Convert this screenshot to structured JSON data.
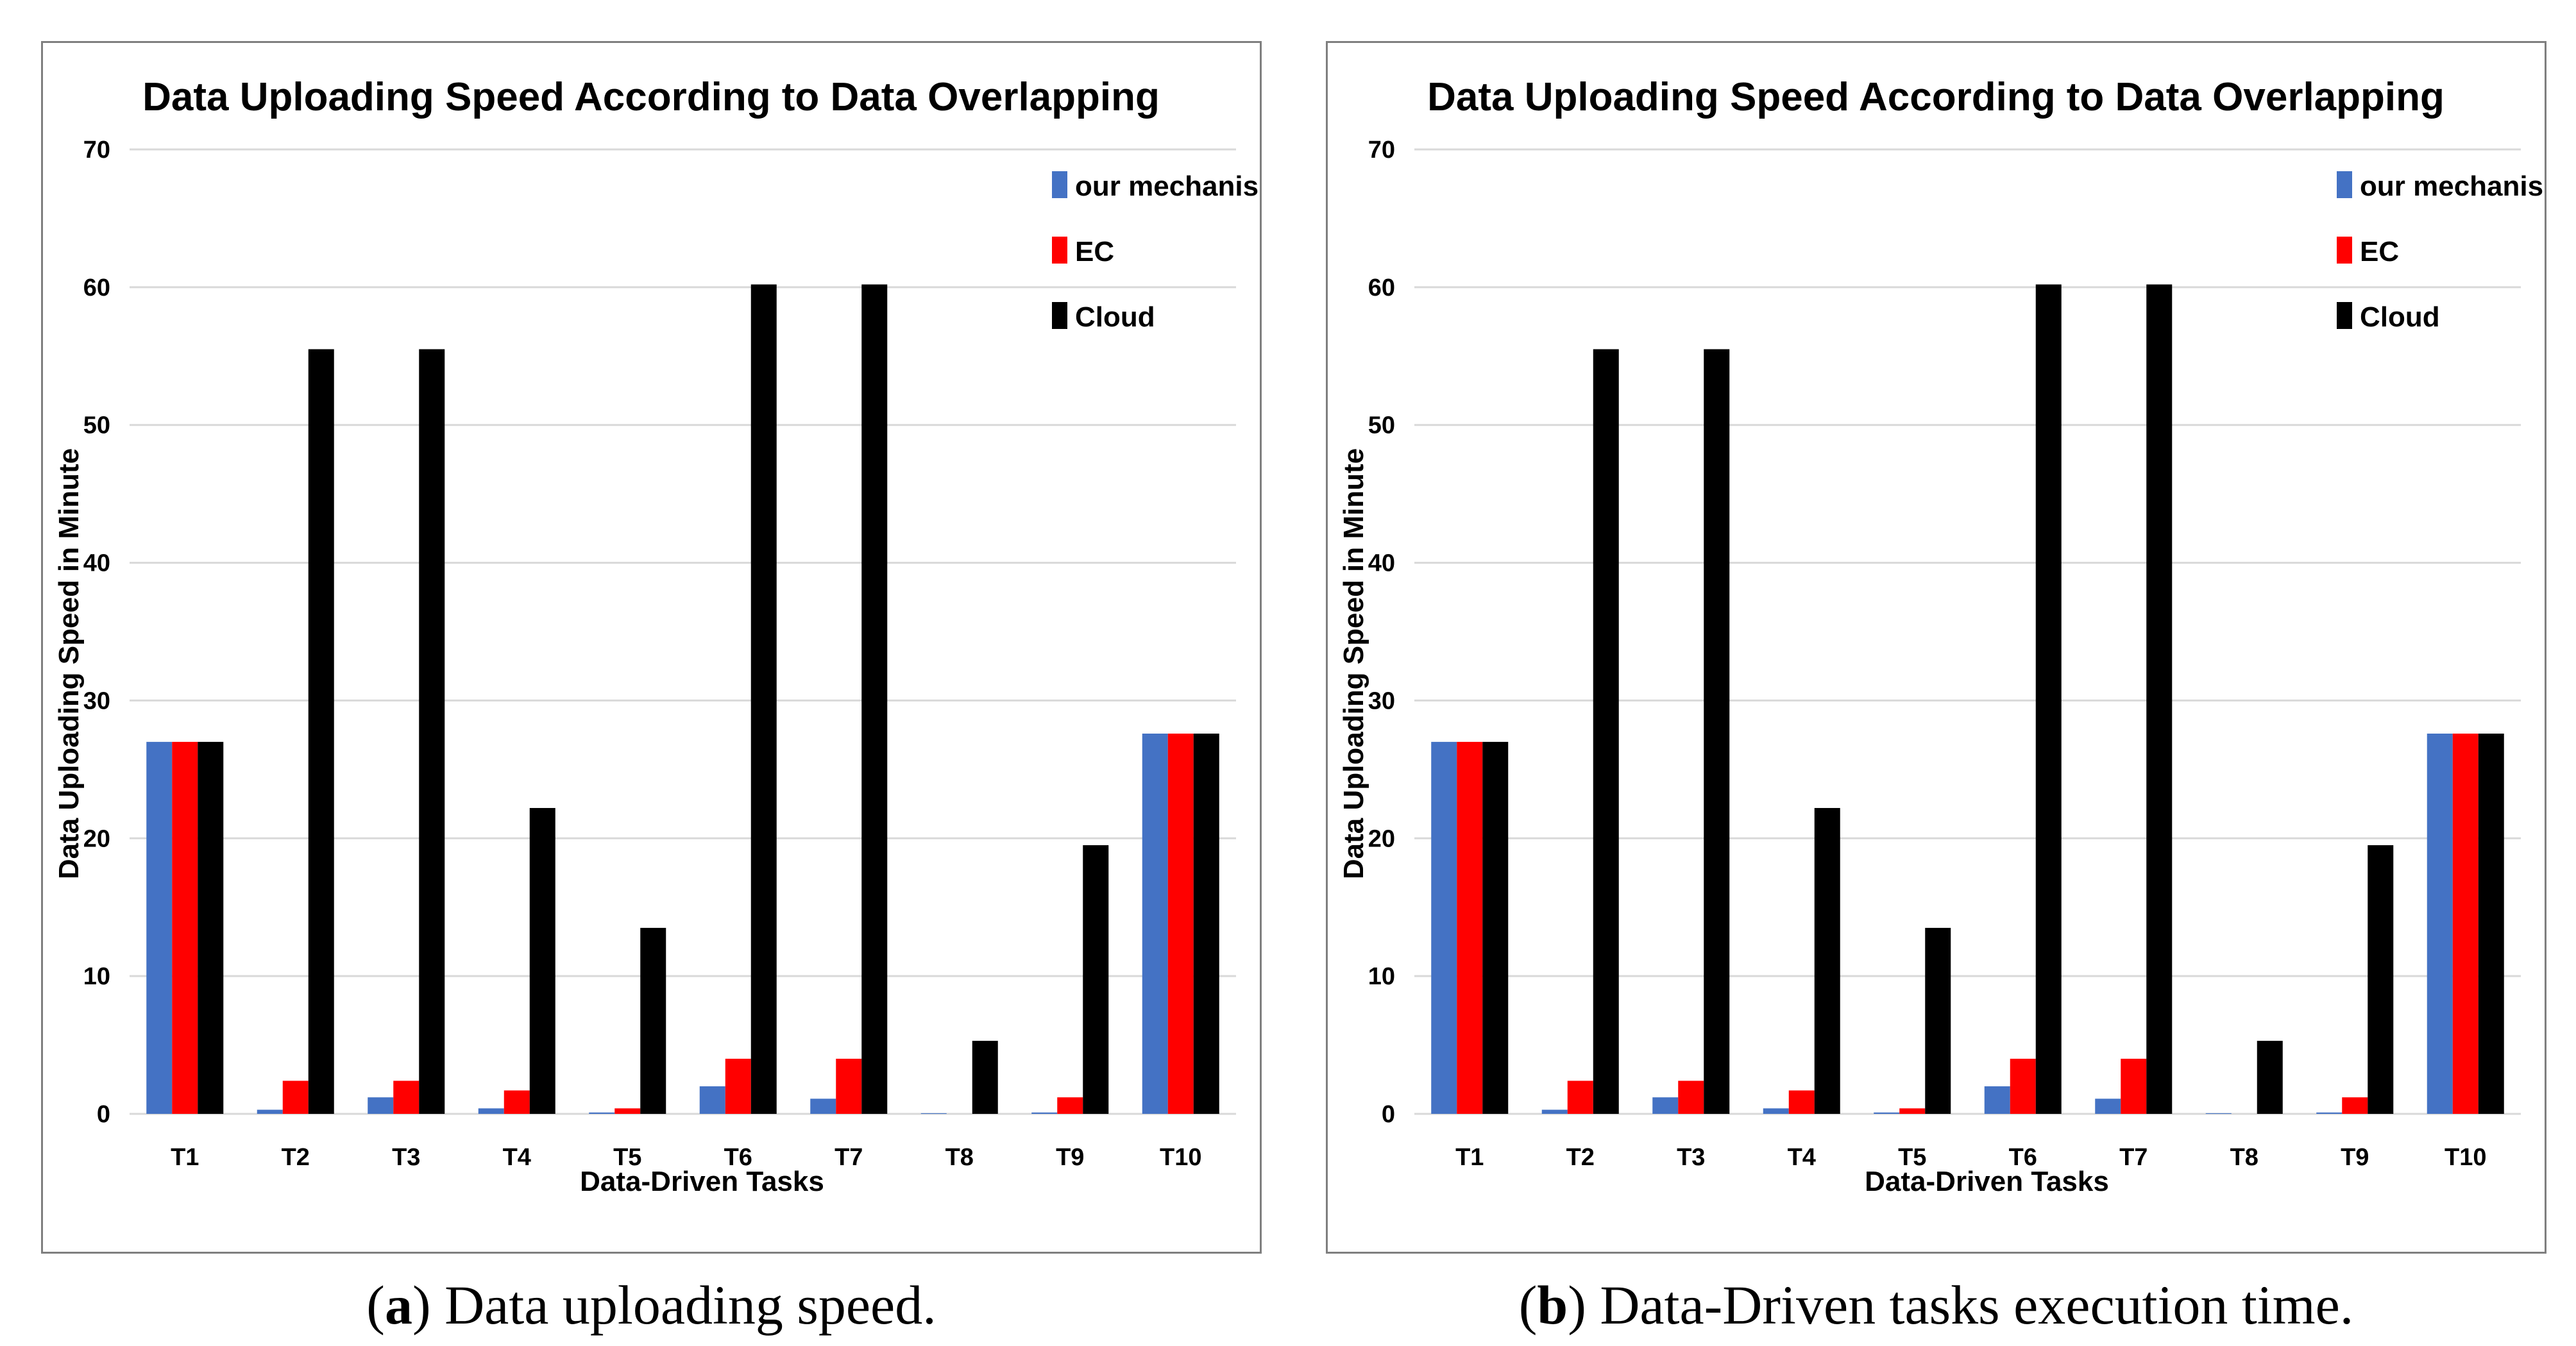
{
  "chart_data": [
    {
      "type": "bar",
      "title": "Data Uploading Speed According to Data Overlapping",
      "xlabel": "Data-Driven Tasks",
      "ylabel": "Data Uploading Speed  in Minute",
      "ylim": [
        0,
        70
      ],
      "yticks": [
        0,
        10,
        20,
        30,
        40,
        50,
        60,
        70
      ],
      "grid": true,
      "legend_position": "top-right",
      "categories": [
        "T1",
        "T2",
        "T3",
        "T4",
        "T5",
        "T6",
        "T7",
        "T8",
        "T9",
        "T10"
      ],
      "series": [
        {
          "name": "our mechanism",
          "color": "#4472c4",
          "values": [
            27,
            0.3,
            1.2,
            0.4,
            0.1,
            2.0,
            1.1,
            0.05,
            0.1,
            27.6
          ]
        },
        {
          "name": "EC",
          "color": "#ff0000",
          "values": [
            27,
            2.4,
            2.4,
            1.7,
            0.4,
            4.0,
            4.0,
            0,
            1.2,
            27.6
          ]
        },
        {
          "name": "Cloud",
          "color": "#000000",
          "values": [
            27,
            55.5,
            55.5,
            22.2,
            13.5,
            60.2,
            60.2,
            5.3,
            19.5,
            27.6
          ]
        }
      ],
      "caption_label": "a",
      "caption_text": " Data uploading speed."
    },
    {
      "type": "bar",
      "title": "Data Uploading Speed According to Data Overlapping",
      "xlabel": "Data-Driven Tasks",
      "ylabel": "Data Uploading Speed  in Minute",
      "ylim": [
        0,
        70
      ],
      "yticks": [
        0,
        10,
        20,
        30,
        40,
        50,
        60,
        70
      ],
      "grid": true,
      "legend_position": "top-right",
      "categories": [
        "T1",
        "T2",
        "T3",
        "T4",
        "T5",
        "T6",
        "T7",
        "T8",
        "T9",
        "T10"
      ],
      "series": [
        {
          "name": "our mechanism",
          "color": "#4472c4",
          "values": [
            27,
            0.3,
            1.2,
            0.4,
            0.1,
            2.0,
            1.1,
            0.05,
            0.1,
            27.6
          ]
        },
        {
          "name": "EC",
          "color": "#ff0000",
          "values": [
            27,
            2.4,
            2.4,
            1.7,
            0.4,
            4.0,
            4.0,
            0,
            1.2,
            27.6
          ]
        },
        {
          "name": "Cloud",
          "color": "#000000",
          "values": [
            27,
            55.5,
            55.5,
            22.2,
            13.5,
            60.2,
            60.2,
            5.3,
            19.5,
            27.6
          ]
        }
      ],
      "caption_label": "b",
      "caption_text": " Data-Driven tasks execution time."
    }
  ]
}
